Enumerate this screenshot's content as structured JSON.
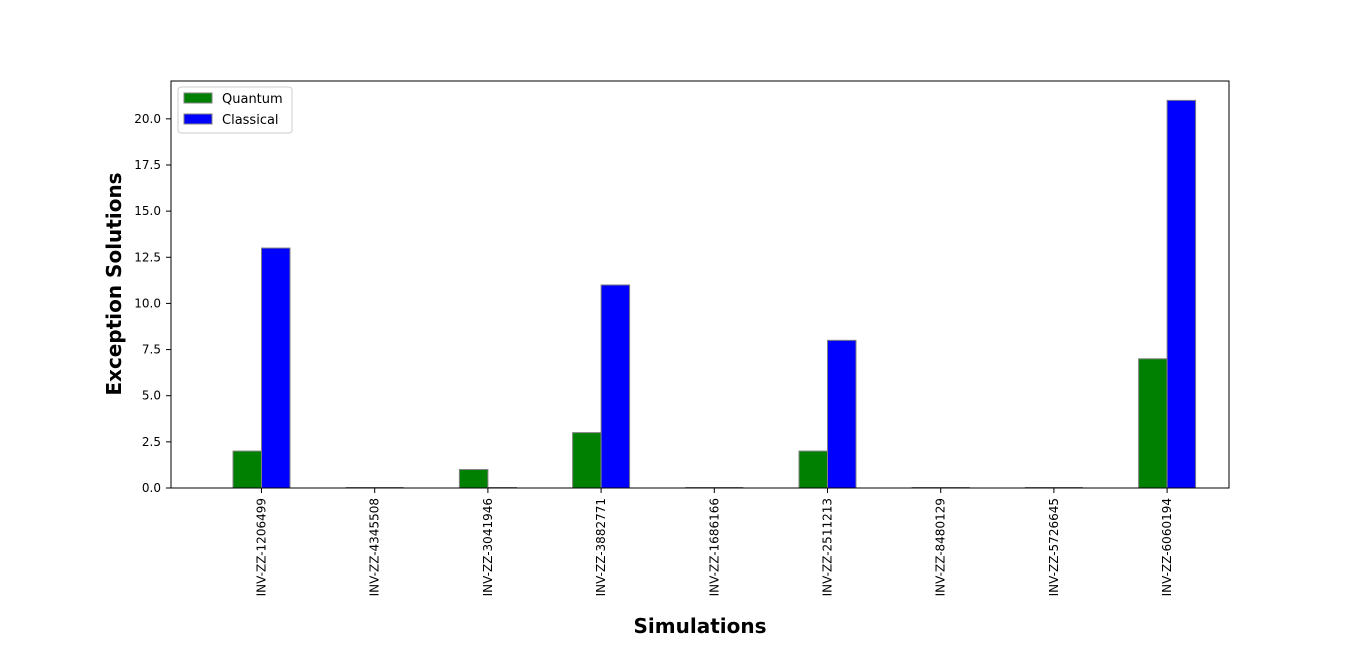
{
  "chart_data": {
    "type": "bar",
    "categories": [
      "INV-ZZ-1206499",
      "INV-ZZ-4345508",
      "INV-ZZ-3041946",
      "INV-ZZ-3882771",
      "INV-ZZ-1686166",
      "INV-ZZ-2511213",
      "INV-ZZ-8480129",
      "INV-ZZ-5726645",
      "INV-ZZ-6060194"
    ],
    "series": [
      {
        "name": "Quantum",
        "values": [
          2,
          0,
          1,
          3,
          0,
          2,
          0,
          0,
          7
        ],
        "color": "#008000"
      },
      {
        "name": "Classical",
        "values": [
          13,
          0,
          0,
          11,
          0,
          8,
          0,
          0,
          21
        ],
        "color": "#0000ff"
      }
    ],
    "xlabel": "Simulations",
    "ylabel": "Exception Solutions",
    "ylim": [
      0,
      22.05
    ],
    "yticks": [
      0.0,
      2.5,
      5.0,
      7.5,
      10.0,
      12.5,
      15.0,
      17.5,
      20.0
    ],
    "ytick_labels": [
      "0.0",
      "2.5",
      "5.0",
      "7.5",
      "10.0",
      "12.5",
      "15.0",
      "17.5",
      "20.0"
    ],
    "legend_position": "top-left",
    "grid": false,
    "bar_edge_color": "#808080"
  }
}
